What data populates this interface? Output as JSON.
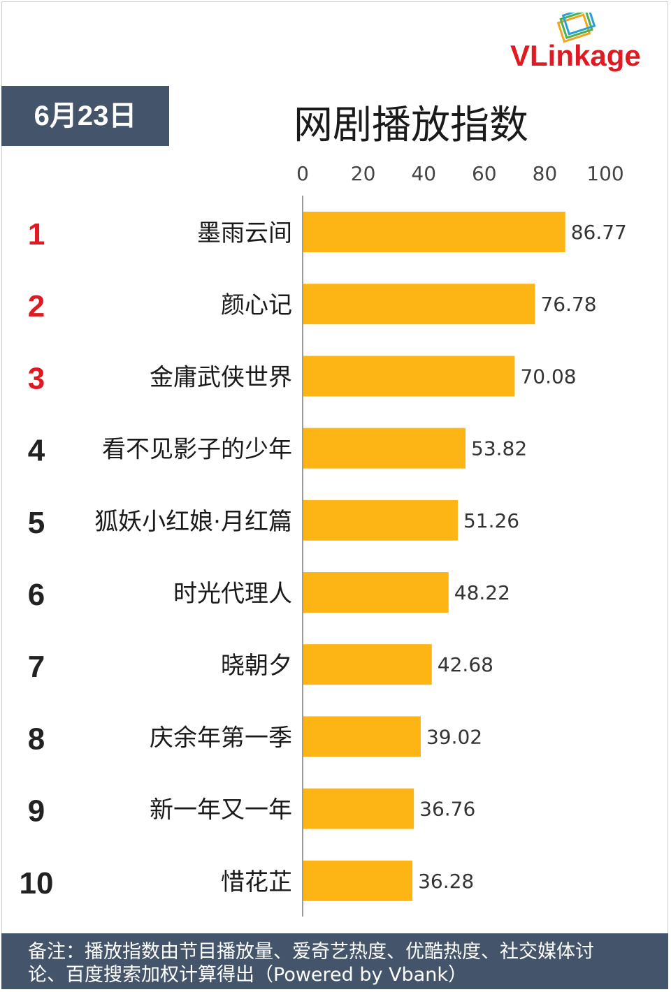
{
  "brand": {
    "name_part1": "VLink",
    "name_part2": "age",
    "accent_color": "#e01a22"
  },
  "date_label": "6月23日",
  "title": "网剧播放指数",
  "footer": {
    "line1": "备注：播放指数由节目播放量、爱奇艺热度、优酷热度、社交媒体讨",
    "line2": "论、百度搜索加权计算得出（Powered by Vbank）"
  },
  "chart_data": {
    "type": "bar",
    "orientation": "horizontal",
    "title": "网剧播放指数",
    "ranks": [
      "1",
      "2",
      "3",
      "4",
      "5",
      "6",
      "7",
      "8",
      "9",
      "10"
    ],
    "categories": [
      "墨雨云间",
      "颜心记",
      "金庸武侠世界",
      "看不见影子的少年",
      "狐妖小红娘·月红篇",
      "时光代理人",
      "晓朝夕",
      "庆余年第一季",
      "新一年又一年",
      "惜花芷"
    ],
    "values": [
      86.77,
      76.78,
      70.08,
      53.82,
      51.26,
      48.22,
      42.68,
      39.02,
      36.76,
      36.28
    ],
    "value_labels": [
      "86.77",
      "76.78",
      "70.08",
      "53.82",
      "51.26",
      "48.22",
      "42.68",
      "39.02",
      "36.76",
      "36.28"
    ],
    "xlim": [
      0,
      100
    ],
    "x_ticks": [
      "0",
      "20",
      "40",
      "60",
      "80",
      "100"
    ],
    "x_axis_position": "top",
    "grid": false,
    "bar_color": "#fdb515",
    "top3_rank_color": "#e01a22",
    "rank_color": "#222222"
  }
}
